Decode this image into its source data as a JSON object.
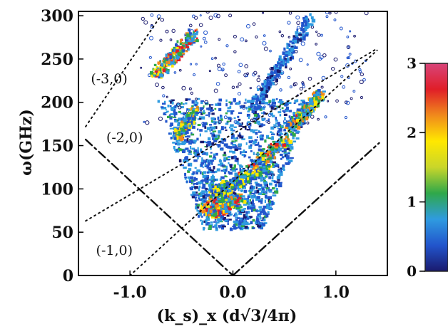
{
  "chart_data": {
    "type": "heatmap",
    "title": "",
    "xlabel": "(k_s)_x (d√3/4π)",
    "ylabel": "ω(GHz)",
    "xlim": [
      -1.5,
      1.5
    ],
    "ylim": [
      0,
      305
    ],
    "x_ticks": [
      "-1.0",
      "0.0",
      "1.0"
    ],
    "x_tick_values": [
      -1.0,
      0.0,
      1.0
    ],
    "y_ticks": [
      "0",
      "50",
      "100",
      "150",
      "200",
      "250",
      "300"
    ],
    "y_tick_values": [
      0,
      50,
      100,
      150,
      200,
      250,
      300
    ],
    "colorbar": {
      "min": 0,
      "max": 3,
      "ticks": [
        "0",
        "1",
        "2",
        "3"
      ],
      "tick_values": [
        0,
        1,
        2,
        3
      ],
      "colors": [
        "#1a1a6e",
        "#2255cc",
        "#2f9be0",
        "#2fa84a",
        "#c9d62a",
        "#ffe800",
        "#f08a1c",
        "#e01e28",
        "#d8457a"
      ]
    },
    "annotations": [
      {
        "text": "(-3,0)",
        "x": -1.38,
        "y": 222
      },
      {
        "text": "(-2,0)",
        "x": -1.23,
        "y": 154
      },
      {
        "text": "(-1,0)",
        "x": -1.33,
        "y": 24
      }
    ],
    "reference_lines": [
      {
        "name": "(-3,0) dotted",
        "style": "dotted",
        "points": [
          [
            -1.43,
            172
          ],
          [
            -0.7,
            300
          ]
        ]
      },
      {
        "name": "(-2,0) dotted",
        "style": "dotted",
        "points": [
          [
            -1.43,
            63
          ],
          [
            1.4,
            262
          ]
        ]
      },
      {
        "name": "(-1,0) dotted",
        "style": "dotted",
        "points": [
          [
            -1.0,
            0
          ],
          [
            1.4,
            260
          ]
        ]
      },
      {
        "name": "left dash-dot",
        "style": "dashdot",
        "points": [
          [
            -1.43,
            157
          ],
          [
            0.0,
            0
          ]
        ]
      },
      {
        "name": "right dash-dot",
        "style": "dashdot",
        "points": [
          [
            0.0,
            0
          ],
          [
            1.42,
            153
          ]
        ]
      }
    ],
    "intensity_bands": [
      {
        "name": "upper-left branch",
        "from": [
          -0.75,
          232
        ],
        "to": [
          -0.38,
          279
        ],
        "width": 0.05,
        "peak": 3
      },
      {
        "name": "upper-right branch",
        "from": [
          0.2,
          196
        ],
        "to": [
          0.75,
          296
        ],
        "width": 0.04,
        "peak": 1.5
      },
      {
        "name": "main diagonal",
        "from": [
          -0.28,
          75
        ],
        "to": [
          0.55,
          163
        ],
        "width": 0.05,
        "peak": 3
      },
      {
        "name": "right bright band",
        "from": [
          0.55,
          170
        ],
        "to": [
          0.85,
          210
        ],
        "width": 0.04,
        "peak": 2.7
      },
      {
        "name": "left wing",
        "from": [
          -0.55,
          158
        ],
        "to": [
          -0.38,
          190
        ],
        "width": 0.04,
        "peak": 2.4
      },
      {
        "name": "bottom cluster",
        "from": [
          -0.22,
          72
        ],
        "to": [
          0.05,
          88
        ],
        "width": 0.06,
        "peak": 3
      },
      {
        "name": "lower fan band",
        "from": [
          -0.2,
          95
        ],
        "to": [
          0.35,
          125
        ],
        "width": 0.06,
        "peak": 2.2
      }
    ]
  }
}
